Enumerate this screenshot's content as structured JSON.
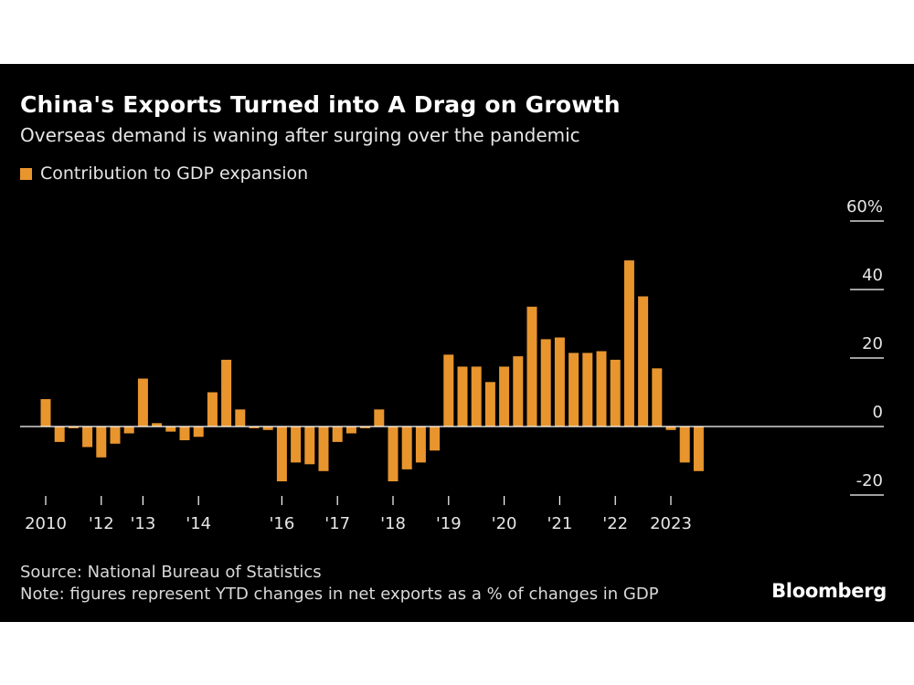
{
  "title": "China's Exports Turned into A Drag on Growth",
  "subtitle": "Overseas demand is waning after surging over the pandemic",
  "legend": {
    "label": "Contribution to GDP expansion"
  },
  "source": "Source: National Bureau of Statistics",
  "note": "Note: figures represent YTD changes in net exports as a % of changes in GDP",
  "brand": "Bloomberg",
  "colors": {
    "background": "#000000",
    "bar": "#e8952e",
    "text": "#ffffff",
    "axis": "#ffffff"
  },
  "chart_data": {
    "type": "bar",
    "title": "China's Exports Turned into A Drag on Growth",
    "xlabel": "",
    "ylabel": "",
    "ylim": [
      -20,
      60
    ],
    "y_ticks": [
      {
        "value": 60,
        "label": "60%"
      },
      {
        "value": 40,
        "label": "40"
      },
      {
        "value": 20,
        "label": "20"
      },
      {
        "value": 0,
        "label": "0"
      },
      {
        "value": -20,
        "label": "-20"
      }
    ],
    "x_ticks": [
      {
        "index": 0,
        "label": "2010"
      },
      {
        "index": 4,
        "label": "'12"
      },
      {
        "index": 7,
        "label": "'13"
      },
      {
        "index": 11,
        "label": "'14"
      },
      {
        "index": 17,
        "label": "'16"
      },
      {
        "index": 21,
        "label": "'17"
      },
      {
        "index": 25,
        "label": "'18"
      },
      {
        "index": 29,
        "label": "'19"
      },
      {
        "index": 33,
        "label": "'20"
      },
      {
        "index": 37,
        "label": "'21"
      },
      {
        "index": 41,
        "label": "'22"
      },
      {
        "index": 45,
        "label": "2023"
      }
    ],
    "series": [
      {
        "name": "Contribution to GDP expansion",
        "values": [
          8,
          -4.5,
          -0.5,
          -6,
          -9,
          -5,
          -2,
          14,
          1,
          -1.5,
          -4,
          -3,
          10,
          19.5,
          5,
          -0.5,
          -1,
          -16,
          -10.5,
          -11,
          -13,
          -4.5,
          -2,
          -0.5,
          5,
          -16,
          -12.5,
          -10.5,
          -7,
          21,
          17.5,
          17.5,
          13,
          17.5,
          20.5,
          35,
          25.5,
          26,
          21.5,
          21.5,
          22,
          19.5,
          48.5,
          38,
          17,
          -1,
          -10.5,
          -13
        ]
      }
    ]
  }
}
